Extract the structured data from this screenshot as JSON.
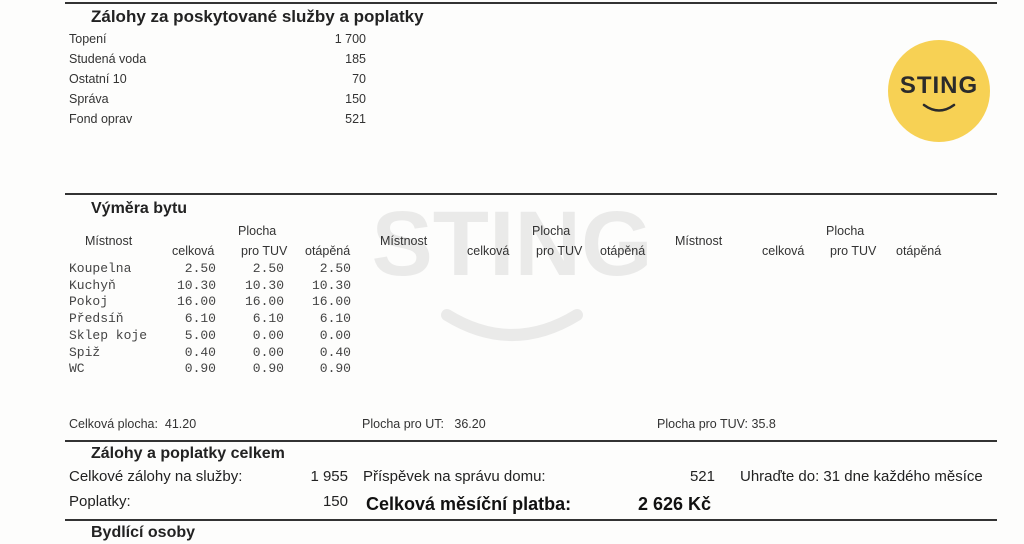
{
  "brand": {
    "logo_text": "STING",
    "logo_color": "#f7d154"
  },
  "services": {
    "title": "Zálohy za poskytované služby a poplatky",
    "items": [
      {
        "label": "Topení",
        "value": "1 700"
      },
      {
        "label": "Studená voda",
        "value": "185"
      },
      {
        "label": "Ostatní 10",
        "value": "70"
      },
      {
        "label": "Správa",
        "value": "150"
      },
      {
        "label": "Fond oprav",
        "value": "521"
      }
    ]
  },
  "area": {
    "title": "Výměra bytu",
    "headers": {
      "room": "Místnost",
      "plocha": "Plocha",
      "total": "celková",
      "tuv": "pro TUV",
      "heated": "otápěná"
    },
    "rows": [
      {
        "room": "Koupelna",
        "total": "2.50",
        "tuv": "2.50",
        "heated": "2.50"
      },
      {
        "room": "Kuchyň",
        "total": "10.30",
        "tuv": "10.30",
        "heated": "10.30"
      },
      {
        "room": "Pokoj",
        "total": "16.00",
        "tuv": "16.00",
        "heated": "16.00"
      },
      {
        "room": "Předsíň",
        "total": "6.10",
        "tuv": "6.10",
        "heated": "6.10"
      },
      {
        "room": "Sklep koje",
        "total": "5.00",
        "tuv": "0.00",
        "heated": "0.00"
      },
      {
        "room": "Spiž",
        "total": "0.40",
        "tuv": "0.00",
        "heated": "0.40"
      },
      {
        "room": "WC",
        "total": "0.90",
        "tuv": "0.90",
        "heated": "0.90"
      }
    ],
    "summary": {
      "total": "Celková plocha:  41.20",
      "ut": "Plocha pro UT:   36.20",
      "tuv": "Plocha pro TUV: 35.8"
    }
  },
  "totals": {
    "title": "Zálohy a poplatky celkem",
    "services_label": "Celkové zálohy na služby:",
    "services_value": "1 955",
    "fees_label": "Poplatky:",
    "fees_value": "150",
    "contribution_label": "Příspěvek na správu domu:",
    "contribution_value": "521",
    "monthly_label": "Celková měsíční platba:",
    "monthly_value": "2 626 Kč",
    "due": "Uhraďte do: 31 dne každého měsíce"
  },
  "residents": {
    "title": "Bydlící osoby"
  }
}
